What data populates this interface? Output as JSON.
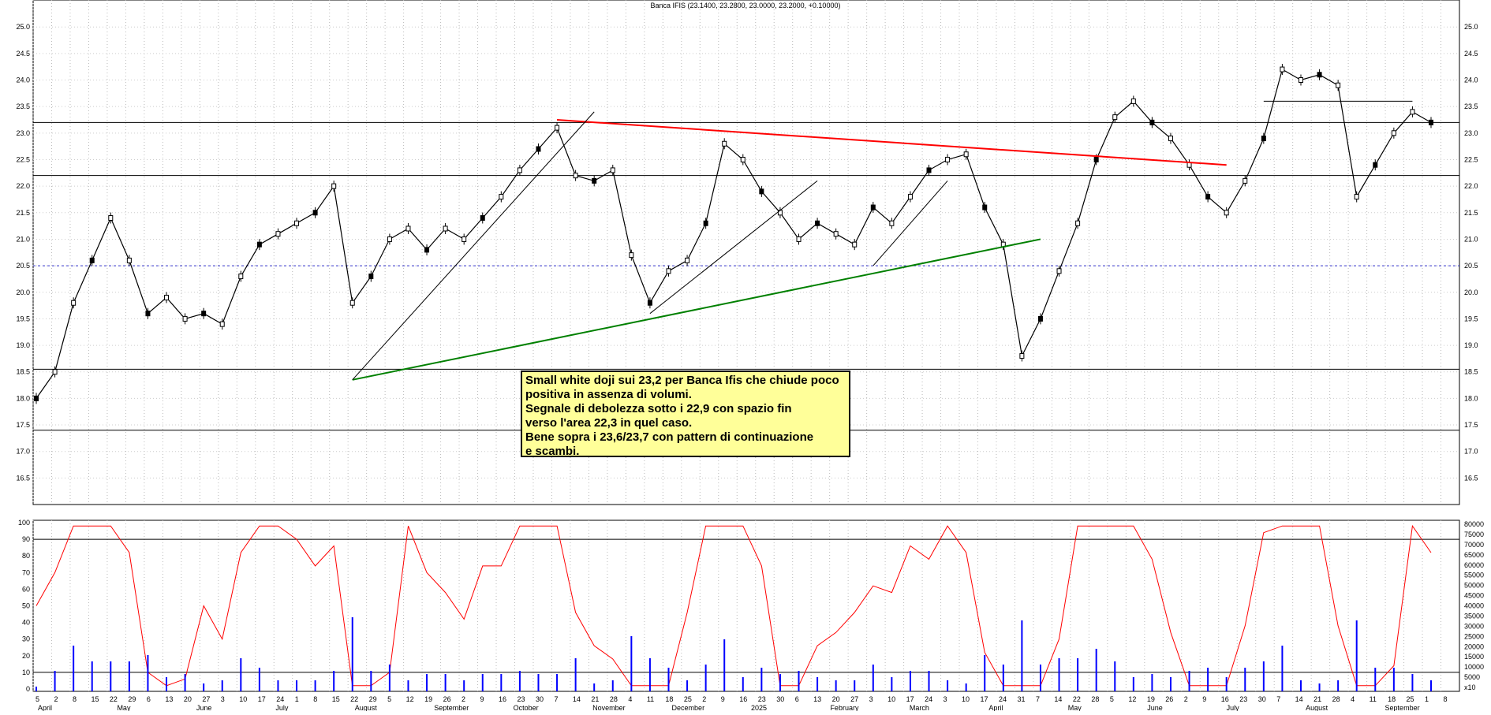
{
  "chart_data": {
    "type": "line",
    "title": "Banca IFIS (23.1400, 23.2800, 23.0000, 23.2000, +0.10000)",
    "price_panel": {
      "series": [
        {
          "x": [
            "2024-04-05",
            "2024-04-12",
            "2024-04-19",
            "2024-04-26",
            "2024-05-03",
            "2024-05-10",
            "2024-05-17",
            "2024-05-24",
            "2024-05-31",
            "2024-06-07",
            "2024-06-14",
            "2024-06-21",
            "2024-06-28",
            "2024-07-05",
            "2024-07-12",
            "2024-07-19",
            "2024-07-26",
            "2024-08-02",
            "2024-08-09",
            "2024-08-16",
            "2024-08-23",
            "2024-08-30",
            "2024-09-06",
            "2024-09-13",
            "2024-09-20",
            "2024-09-27",
            "2024-10-04",
            "2024-10-11",
            "2024-10-18",
            "2024-10-25",
            "2024-11-01",
            "2024-11-08",
            "2024-11-15",
            "2024-11-22",
            "2024-11-29",
            "2024-12-06",
            "2024-12-13",
            "2024-12-20",
            "2024-12-27",
            "2025-01-03",
            "2025-01-10",
            "2025-01-17",
            "2025-01-24",
            "2025-01-31",
            "2025-02-07",
            "2025-02-14",
            "2025-02-21",
            "2025-02-28",
            "2025-03-07",
            "2025-03-14",
            "2025-03-21",
            "2025-03-28",
            "2025-04-04",
            "2025-04-07",
            "2025-04-11",
            "2025-04-18",
            "2025-04-25",
            "2025-05-02",
            "2025-05-09",
            "2025-05-16",
            "2025-05-23",
            "2025-05-30",
            "2025-06-06",
            "2025-06-13",
            "2025-06-20",
            "2025-06-27",
            "2025-07-04",
            "2025-07-11",
            "2025-07-18",
            "2025-07-25",
            "2025-08-01",
            "2025-08-04",
            "2025-08-08",
            "2025-08-15",
            "2025-08-22",
            "2025-08-29"
          ],
          "values": [
            18.0,
            18.5,
            19.8,
            20.6,
            21.4,
            20.6,
            19.6,
            19.9,
            19.5,
            19.6,
            19.4,
            20.3,
            20.9,
            21.1,
            21.3,
            21.5,
            22.0,
            19.8,
            20.3,
            21.0,
            21.2,
            20.8,
            21.2,
            21.0,
            21.4,
            21.8,
            22.3,
            22.7,
            23.1,
            22.2,
            22.1,
            22.3,
            20.7,
            19.8,
            20.4,
            20.6,
            21.3,
            22.8,
            22.5,
            21.9,
            21.5,
            21.0,
            21.3,
            21.1,
            20.9,
            21.6,
            21.3,
            21.8,
            22.3,
            22.5,
            22.6,
            21.6,
            20.9,
            18.8,
            19.5,
            20.4,
            21.3,
            22.5,
            23.3,
            23.6,
            23.2,
            22.9,
            22.4,
            21.8,
            21.5,
            22.1,
            22.9,
            24.2,
            24.0,
            24.1,
            23.9,
            21.8,
            22.4,
            23.0,
            23.4,
            23.2
          ],
          "name": ""
        }
      ],
      "ylim": [
        16.0,
        25.3
      ],
      "yticks": [
        "25.0",
        "24.5",
        "24.0",
        "23.5",
        "23.0",
        "22.5",
        "22.0",
        "21.5",
        "21.0",
        "20.5",
        "20.0",
        "19.5",
        "19.0",
        "18.5",
        "18.0",
        "17.5",
        "17.0",
        "16.5"
      ]
    },
    "indicator_panel": {
      "oscillator_yticks": [
        "100",
        "90",
        "80",
        "70",
        "60",
        "50",
        "40",
        "30",
        "20",
        "10",
        "0"
      ],
      "volume_yticks": [
        "80000",
        "75000",
        "70000",
        "65000",
        "60000",
        "55000",
        "50000",
        "45000",
        "40000",
        "35000",
        "30000",
        "25000",
        "20000",
        "15000",
        "10000",
        "5000",
        "x10"
      ]
    },
    "x_day_labels": [
      "5",
      "2",
      "8",
      "15",
      "22",
      "29",
      "6",
      "13",
      "20",
      "27",
      "3",
      "10",
      "17",
      "24",
      "1",
      "8",
      "15",
      "22",
      "29",
      "5",
      "12",
      "19",
      "26",
      "2",
      "9",
      "16",
      "23",
      "30",
      "7",
      "14",
      "21",
      "28",
      "4",
      "11",
      "18",
      "25",
      "2",
      "9",
      "16",
      "23",
      "30",
      "6",
      "13",
      "20",
      "27",
      "3",
      "10",
      "17",
      "24",
      "3",
      "10",
      "17",
      "24",
      "31",
      "7",
      "14",
      "22",
      "28",
      "5",
      "12",
      "19",
      "26",
      "2",
      "9",
      "16",
      "23",
      "30",
      "7",
      "14",
      "21",
      "28",
      "4",
      "11",
      "18",
      "25",
      "1",
      "8"
    ],
    "x_month_labels": [
      "April",
      "May",
      "June",
      "July",
      "August",
      "September",
      "October",
      "November",
      "December",
      "2025",
      "February",
      "March",
      "April",
      "May",
      "June",
      "July",
      "August",
      "September"
    ],
    "horizontal_levels": [
      23.2,
      22.2,
      18.55,
      17.4,
      20.5
    ],
    "annotation_lines": [
      "Small white doji sui 23,2 per Banca Ifis che chiude poco",
      "positiva in assenza di volumi.",
      "Segnale di debolezza sotto i 22,9 con spazio fin",
      "verso l'area 22,3 in quel caso.",
      "Bene sopra i 23,6/23,7 con pattern di continuazione",
      "e scambi."
    ],
    "colors": {
      "price": "#000000",
      "resistance": "#ff0000",
      "support": "#008000",
      "oscillator": "#ff0000",
      "volume": "#0000ff",
      "annotation_bg": "#ffff99"
    }
  }
}
